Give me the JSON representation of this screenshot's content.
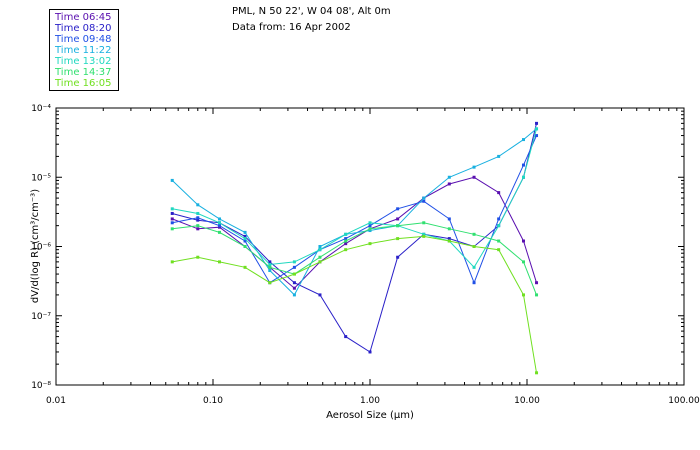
{
  "header": {
    "location": "PML, N 50 22', W 04 08', Alt 0m",
    "date": "Data from: 16 Apr 2002"
  },
  "legend": [
    {
      "label": "Time 06:45",
      "color": "#5a10b0"
    },
    {
      "label": "Time 08:20",
      "color": "#2a20c8"
    },
    {
      "label": "Time 09:48",
      "color": "#2050e6"
    },
    {
      "label": "Time 11:22",
      "color": "#18b0e0"
    },
    {
      "label": "Time 13:02",
      "color": "#20d8c0"
    },
    {
      "label": "Time 14:37",
      "color": "#30e070"
    },
    {
      "label": "Time 16:05",
      "color": "#70e020"
    }
  ],
  "chart_data": {
    "type": "line",
    "title": "PML, N 50 22', W 04 08', Alt 0m",
    "subtitle": "Data from: 16 Apr 2002",
    "xlabel": "Aerosol Size (µm)",
    "ylabel": "dV/d(log R) (cm³/cm⁻³)",
    "xscale": "log",
    "yscale": "log",
    "xlim": [
      0.01,
      100
    ],
    "ylim": [
      1e-08,
      0.0001
    ],
    "x_ticks": [
      "0.01",
      "0.10",
      "1.00",
      "10.00",
      "100.00"
    ],
    "y_ticks": [
      "10⁻⁸",
      "10⁻⁷",
      "10⁻⁶",
      "10⁻⁵",
      "10⁻⁴"
    ],
    "x": [
      0.055,
      0.08,
      0.11,
      0.16,
      0.23,
      0.33,
      0.48,
      0.7,
      1.0,
      1.5,
      2.2,
      3.2,
      4.6,
      6.6,
      9.5,
      11.5
    ],
    "series": [
      {
        "name": "Time 06:45",
        "values": [
          2.5e-06,
          1.8e-06,
          1.9e-06,
          1e-06,
          5e-07,
          2.5e-07,
          6e-07,
          1.1e-06,
          1.8e-06,
          2.5e-06,
          5e-06,
          8e-06,
          1e-05,
          6e-06,
          1.2e-06,
          3e-07
        ]
      },
      {
        "name": "Time 08:20",
        "values": [
          3e-06,
          2.4e-06,
          2.2e-06,
          1.4e-06,
          6e-07,
          3e-07,
          2e-07,
          5e-08,
          3e-08,
          7e-07,
          1.5e-06,
          1.3e-06,
          1e-06,
          2e-06,
          1e-05,
          6e-05
        ]
      },
      {
        "name": "Time 09:48",
        "values": [
          2.2e-06,
          2.6e-06,
          2e-06,
          1.2e-06,
          3e-07,
          5e-07,
          9e-07,
          1.3e-06,
          2e-06,
          3.5e-06,
          4.5e-06,
          2.5e-06,
          3e-07,
          2.5e-06,
          1.5e-05,
          4e-05
        ]
      },
      {
        "name": "Time 11:22",
        "values": [
          9e-06,
          4e-06,
          2.5e-06,
          1.6e-06,
          4.5e-07,
          2e-07,
          1e-06,
          1.5e-06,
          1.7e-06,
          2e-06,
          5e-06,
          1e-05,
          1.4e-05,
          2e-05,
          3.5e-05,
          5e-05
        ]
      },
      {
        "name": "Time 13:02",
        "values": [
          3.5e-06,
          3e-06,
          2.2e-06,
          1.3e-06,
          5.5e-07,
          6e-07,
          9e-07,
          1.5e-06,
          2.2e-06,
          2e-06,
          1.5e-06,
          1.2e-06,
          5e-07,
          2e-06,
          1e-05,
          5e-05
        ]
      },
      {
        "name": "Time 14:37",
        "values": [
          1.8e-06,
          2e-06,
          1.6e-06,
          1e-06,
          5e-07,
          4e-07,
          7e-07,
          1.2e-06,
          1.8e-06,
          2e-06,
          2.2e-06,
          1.8e-06,
          1.5e-06,
          1.2e-06,
          6e-07,
          2e-07
        ]
      },
      {
        "name": "Time 16:05",
        "values": [
          6e-07,
          7e-07,
          6e-07,
          5e-07,
          3e-07,
          4e-07,
          6e-07,
          9e-07,
          1.1e-06,
          1.3e-06,
          1.4e-06,
          1.2e-06,
          1e-06,
          9e-07,
          2e-07,
          1.5e-08
        ]
      }
    ]
  }
}
